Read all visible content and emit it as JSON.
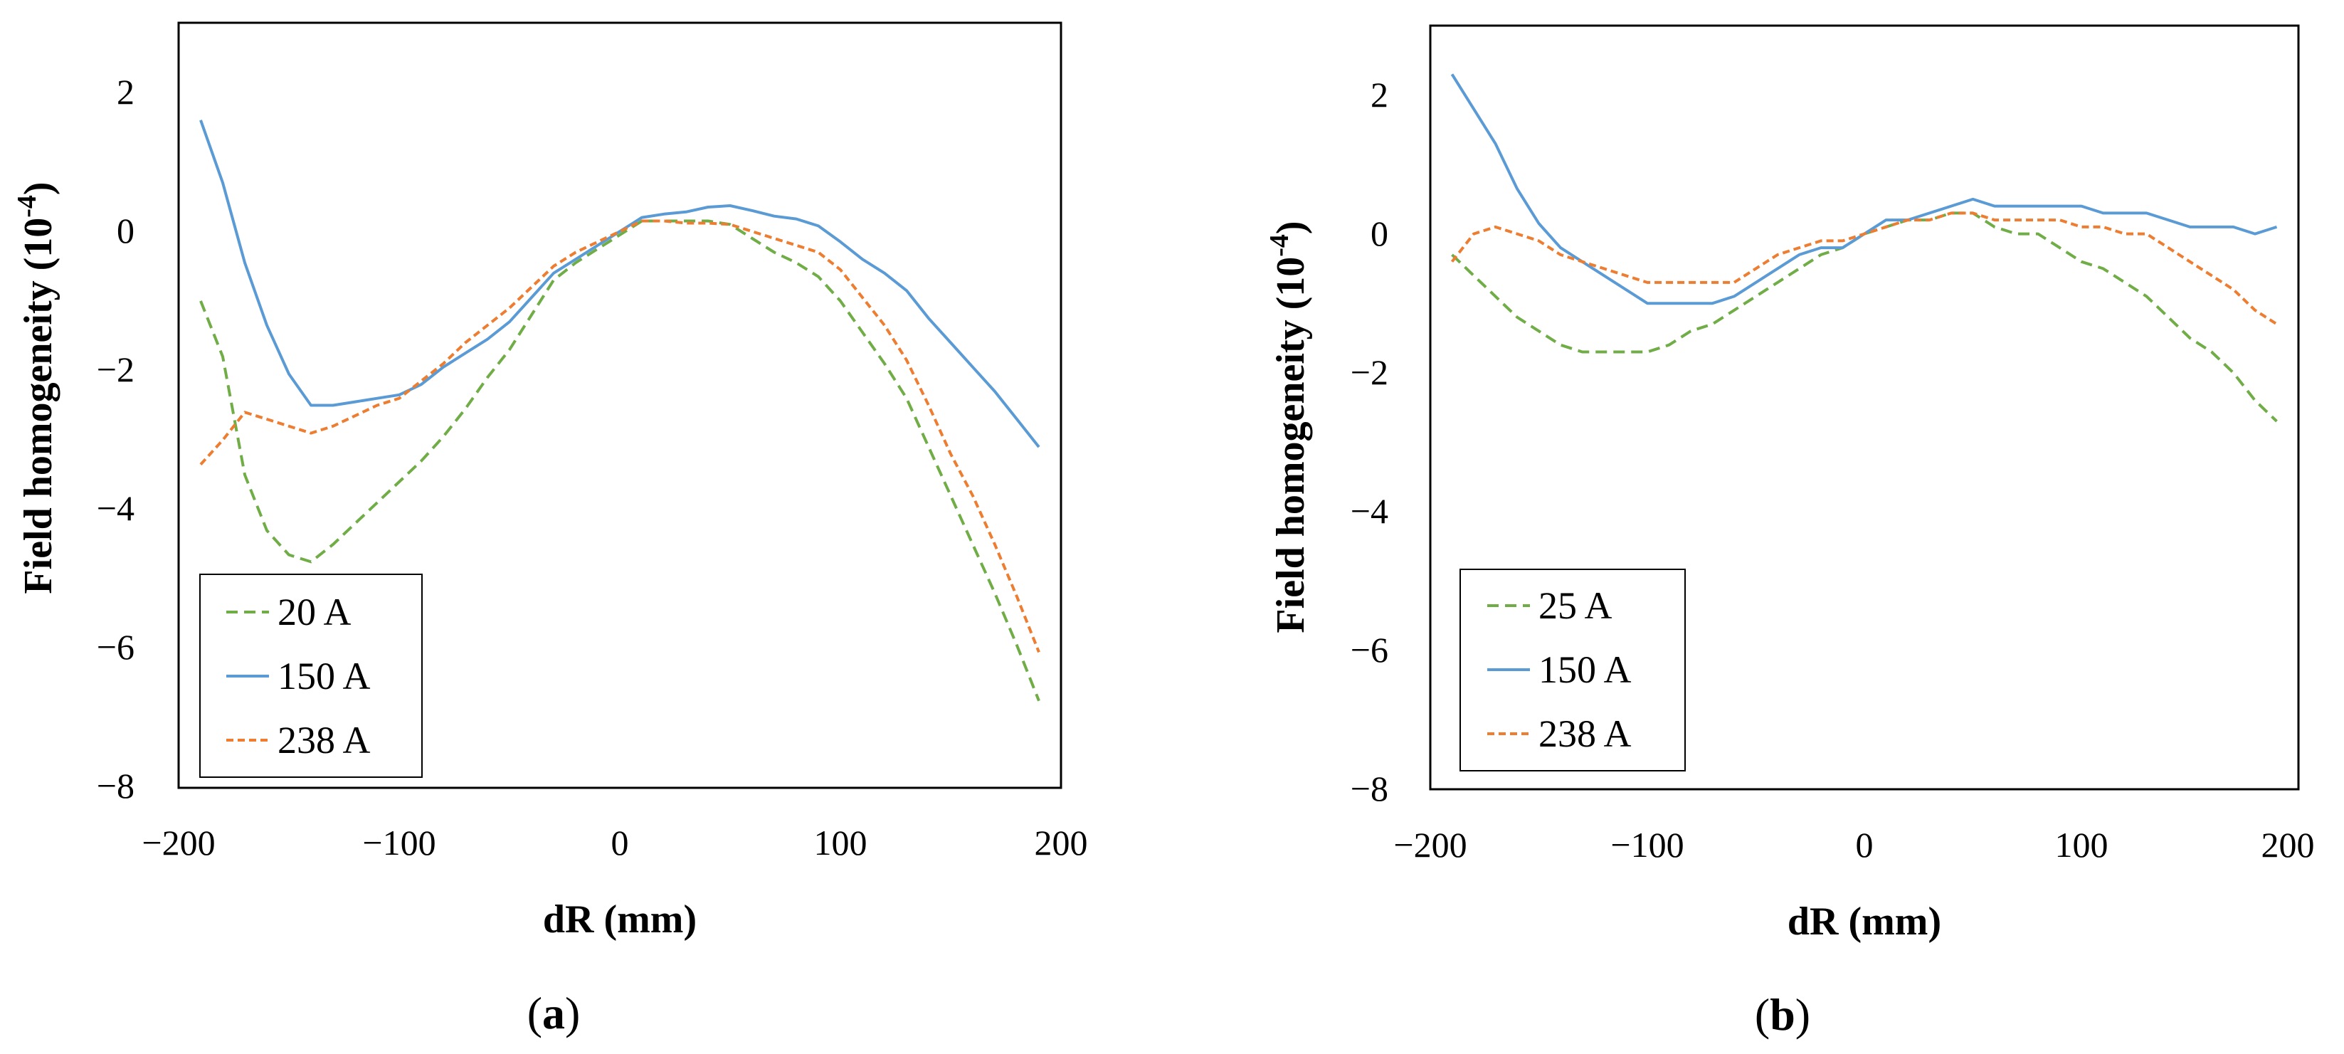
{
  "chart_data": [
    {
      "panel_label": {
        "open": "(",
        "letter": "a",
        "close": ")"
      },
      "type": "line",
      "xlabel": "dR (mm)",
      "ylabel": {
        "main": "Field homogeneity (10",
        "sup": "-4",
        "close": ")"
      },
      "xlim": [
        -200,
        200
      ],
      "ylim": [
        -8,
        3
      ],
      "xticks": [
        -200,
        -100,
        0,
        100,
        200
      ],
      "yticks": [
        2,
        0,
        -2,
        -4,
        -6,
        -8
      ],
      "xtick_labels": [
        "−200",
        "−100",
        "0",
        "100",
        "200"
      ],
      "ytick_labels": [
        "2",
        "0",
        "−2",
        "−4",
        "−6",
        "−8"
      ],
      "legend_position": "bottom-left",
      "series": [
        {
          "name": "20 A",
          "color": "#70ad47",
          "dash": "dashed",
          "x": [
            -190,
            -180,
            -170,
            -160,
            -150,
            -140,
            -130,
            -120,
            -110,
            -100,
            -90,
            -80,
            -70,
            -60,
            -50,
            -40,
            -30,
            -20,
            -10,
            0,
            10,
            20,
            30,
            40,
            50,
            60,
            70,
            80,
            90,
            100,
            110,
            120,
            130,
            140,
            150,
            160,
            170,
            180,
            190
          ],
          "y": [
            -1.0,
            -1.8,
            -3.5,
            -4.3,
            -4.65,
            -4.75,
            -4.5,
            -4.2,
            -3.9,
            -3.6,
            -3.3,
            -2.95,
            -2.55,
            -2.1,
            -1.7,
            -1.2,
            -0.7,
            -0.45,
            -0.25,
            -0.05,
            0.15,
            0.15,
            0.15,
            0.15,
            0.1,
            -0.1,
            -0.3,
            -0.45,
            -0.65,
            -1.0,
            -1.45,
            -1.9,
            -2.4,
            -3.1,
            -3.8,
            -4.5,
            -5.2,
            -5.95,
            -6.75
          ]
        },
        {
          "name": "150 A",
          "color": "#5b9bd5",
          "dash": "solid",
          "x": [
            -190,
            -180,
            -170,
            -160,
            -150,
            -140,
            -130,
            -120,
            -110,
            -100,
            -90,
            -80,
            -70,
            -60,
            -50,
            -40,
            -30,
            -20,
            -10,
            0,
            10,
            20,
            30,
            40,
            50,
            60,
            70,
            80,
            90,
            100,
            110,
            120,
            130,
            140,
            150,
            160,
            170,
            180,
            190
          ],
          "y": [
            1.6,
            0.7,
            -0.45,
            -1.35,
            -2.05,
            -2.5,
            -2.5,
            -2.45,
            -2.4,
            -2.35,
            -2.2,
            -1.95,
            -1.75,
            -1.55,
            -1.3,
            -0.95,
            -0.6,
            -0.4,
            -0.2,
            0.0,
            0.2,
            0.25,
            0.28,
            0.35,
            0.37,
            0.3,
            0.22,
            0.18,
            0.08,
            -0.15,
            -0.4,
            -0.6,
            -0.85,
            -1.25,
            -1.6,
            -1.95,
            -2.3,
            -2.7,
            -3.1
          ]
        },
        {
          "name": "238 A",
          "color": "#ed7d31",
          "dash": "short-dash",
          "x": [
            -190,
            -180,
            -170,
            -160,
            -150,
            -140,
            -130,
            -120,
            -110,
            -100,
            -90,
            -80,
            -70,
            -60,
            -50,
            -40,
            -30,
            -20,
            -10,
            0,
            10,
            20,
            30,
            40,
            50,
            60,
            70,
            80,
            90,
            100,
            110,
            120,
            130,
            140,
            150,
            160,
            170,
            180,
            190
          ],
          "y": [
            -3.35,
            -3.0,
            -2.6,
            -2.7,
            -2.8,
            -2.9,
            -2.8,
            -2.65,
            -2.5,
            -2.4,
            -2.15,
            -1.9,
            -1.6,
            -1.35,
            -1.1,
            -0.8,
            -0.5,
            -0.3,
            -0.15,
            0.0,
            0.15,
            0.15,
            0.12,
            0.12,
            0.1,
            0.0,
            -0.1,
            -0.2,
            -0.3,
            -0.55,
            -0.95,
            -1.35,
            -1.85,
            -2.5,
            -3.2,
            -3.8,
            -4.5,
            -5.25,
            -6.05
          ]
        }
      ]
    },
    {
      "panel_label": {
        "open": "(",
        "letter": "b",
        "close": ")"
      },
      "type": "line",
      "xlabel": "dR (mm)",
      "ylabel": {
        "main": "Field homogeneity (10",
        "sup": "-4",
        "close": ")"
      },
      "xlim": [
        -200,
        200
      ],
      "ylim": [
        -8,
        3
      ],
      "xticks": [
        -200,
        -100,
        0,
        100,
        200
      ],
      "yticks": [
        2,
        0,
        -2,
        -4,
        -6,
        -8
      ],
      "xtick_labels": [
        "−200",
        "−100",
        "0",
        "100",
        "200"
      ],
      "ytick_labels": [
        "2",
        "0",
        "−2",
        "−4",
        "−6",
        "−8"
      ],
      "legend_position": "bottom-left",
      "series": [
        {
          "name": "25 A",
          "color": "#70ad47",
          "dash": "dashed",
          "x": [
            -190,
            -180,
            -170,
            -160,
            -150,
            -140,
            -130,
            -120,
            -110,
            -100,
            -90,
            -80,
            -70,
            -60,
            -50,
            -40,
            -30,
            -20,
            -10,
            0,
            10,
            20,
            30,
            40,
            50,
            60,
            70,
            80,
            90,
            100,
            110,
            120,
            130,
            140,
            150,
            160,
            170,
            180,
            190
          ],
          "y": [
            -0.3,
            -0.6,
            -0.9,
            -1.2,
            -1.4,
            -1.6,
            -1.7,
            -1.7,
            -1.7,
            -1.7,
            -1.6,
            -1.4,
            -1.3,
            -1.1,
            -0.9,
            -0.7,
            -0.5,
            -0.3,
            -0.2,
            0.0,
            0.1,
            0.2,
            0.2,
            0.3,
            0.3,
            0.1,
            0.0,
            0.0,
            -0.2,
            -0.4,
            -0.5,
            -0.7,
            -0.9,
            -1.2,
            -1.5,
            -1.7,
            -2.0,
            -2.4,
            -2.7
          ]
        },
        {
          "name": "150 A",
          "color": "#5b9bd5",
          "dash": "solid",
          "x": [
            -190,
            -180,
            -170,
            -160,
            -150,
            -140,
            -130,
            -120,
            -110,
            -100,
            -90,
            -80,
            -70,
            -60,
            -50,
            -40,
            -30,
            -20,
            -10,
            0,
            10,
            20,
            30,
            40,
            50,
            60,
            70,
            80,
            90,
            100,
            110,
            120,
            130,
            140,
            150,
            160,
            170,
            180,
            190
          ],
          "y": [
            2.3,
            1.8,
            1.3,
            0.65,
            0.15,
            -0.2,
            -0.4,
            -0.6,
            -0.8,
            -1.0,
            -1.0,
            -1.0,
            -1.0,
            -0.9,
            -0.7,
            -0.5,
            -0.3,
            -0.2,
            -0.2,
            0.0,
            0.2,
            0.2,
            0.3,
            0.4,
            0.5,
            0.4,
            0.4,
            0.4,
            0.4,
            0.4,
            0.3,
            0.3,
            0.3,
            0.2,
            0.1,
            0.1,
            0.1,
            0.0,
            0.1
          ]
        },
        {
          "name": "238 A",
          "color": "#ed7d31",
          "dash": "short-dash",
          "x": [
            -190,
            -180,
            -170,
            -160,
            -150,
            -140,
            -130,
            -120,
            -110,
            -100,
            -90,
            -80,
            -70,
            -60,
            -50,
            -40,
            -30,
            -20,
            -10,
            0,
            10,
            20,
            30,
            40,
            50,
            60,
            70,
            80,
            90,
            100,
            110,
            120,
            130,
            140,
            150,
            160,
            170,
            180,
            190
          ],
          "y": [
            -0.4,
            0.0,
            0.1,
            0.0,
            -0.1,
            -0.3,
            -0.4,
            -0.5,
            -0.6,
            -0.7,
            -0.7,
            -0.7,
            -0.7,
            -0.7,
            -0.5,
            -0.3,
            -0.2,
            -0.1,
            -0.1,
            0.0,
            0.1,
            0.2,
            0.2,
            0.3,
            0.3,
            0.2,
            0.2,
            0.2,
            0.2,
            0.1,
            0.1,
            0.0,
            0.0,
            -0.2,
            -0.4,
            -0.6,
            -0.8,
            -1.1,
            -1.3
          ]
        }
      ]
    }
  ]
}
